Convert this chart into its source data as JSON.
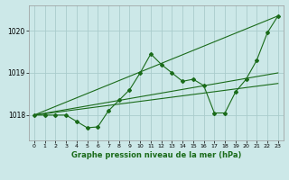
{
  "background_color": "#cce8e8",
  "grid_color": "#aacccc",
  "line_color": "#1a6b1a",
  "title": "Graphe pression niveau de la mer (hPa)",
  "xlim": [
    -0.5,
    23.5
  ],
  "ylim": [
    1017.4,
    1020.6
  ],
  "yticks": [
    1018,
    1019,
    1020
  ],
  "xticks": [
    0,
    1,
    2,
    3,
    4,
    5,
    6,
    7,
    8,
    9,
    10,
    11,
    12,
    13,
    14,
    15,
    16,
    17,
    18,
    19,
    20,
    21,
    22,
    23
  ],
  "series": {
    "main": {
      "x": [
        0,
        1,
        2,
        3,
        4,
        5,
        6,
        7,
        8,
        9,
        10,
        11,
        12,
        13,
        14,
        15,
        16,
        17,
        18,
        19,
        20,
        21,
        22,
        23
      ],
      "y": [
        1018.0,
        1018.0,
        1018.0,
        1018.0,
        1017.85,
        1017.7,
        1017.72,
        1018.1,
        1018.35,
        1018.6,
        1019.0,
        1019.45,
        1019.2,
        1019.0,
        1018.8,
        1018.85,
        1018.7,
        1018.05,
        1018.05,
        1018.55,
        1018.85,
        1019.3,
        1019.95,
        1020.35
      ]
    },
    "trend1": {
      "x": [
        0,
        23
      ],
      "y": [
        1018.0,
        1020.35
      ]
    },
    "trend2": {
      "x": [
        0,
        23
      ],
      "y": [
        1018.0,
        1018.75
      ]
    },
    "trend3": {
      "x": [
        0,
        23
      ],
      "y": [
        1018.0,
        1019.0
      ]
    }
  }
}
